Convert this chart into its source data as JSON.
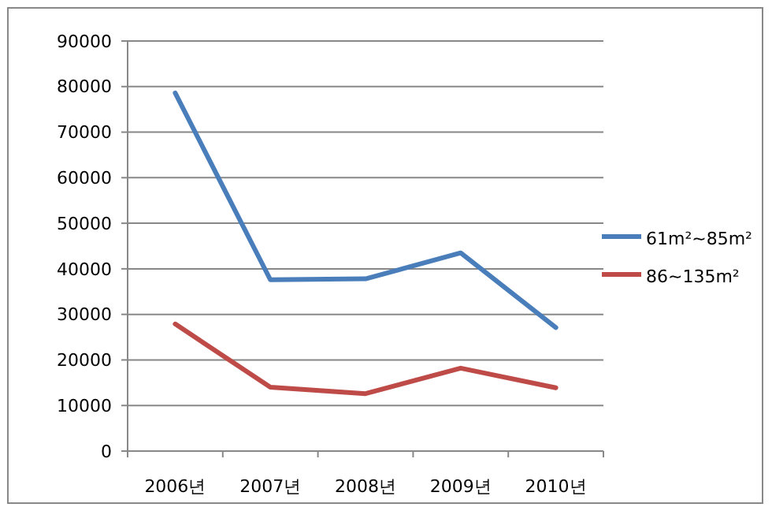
{
  "chart_data": {
    "type": "line",
    "categories": [
      "2006년",
      "2007년",
      "2008년",
      "2009년",
      "2010년"
    ],
    "series": [
      {
        "name": "61m²~85m²",
        "color": "#4a7ebb",
        "values": [
          78600,
          37600,
          37800,
          43500,
          27100
        ]
      },
      {
        "name": "86~135m²",
        "color": "#be4b48",
        "values": [
          27900,
          14000,
          12600,
          18200,
          13900
        ]
      }
    ],
    "ylim": [
      0,
      90000
    ],
    "yticks": [
      0,
      10000,
      20000,
      30000,
      40000,
      50000,
      60000,
      70000,
      80000,
      90000
    ],
    "grid": "y",
    "legend": "right",
    "marker": "none",
    "line_style": "solid"
  }
}
